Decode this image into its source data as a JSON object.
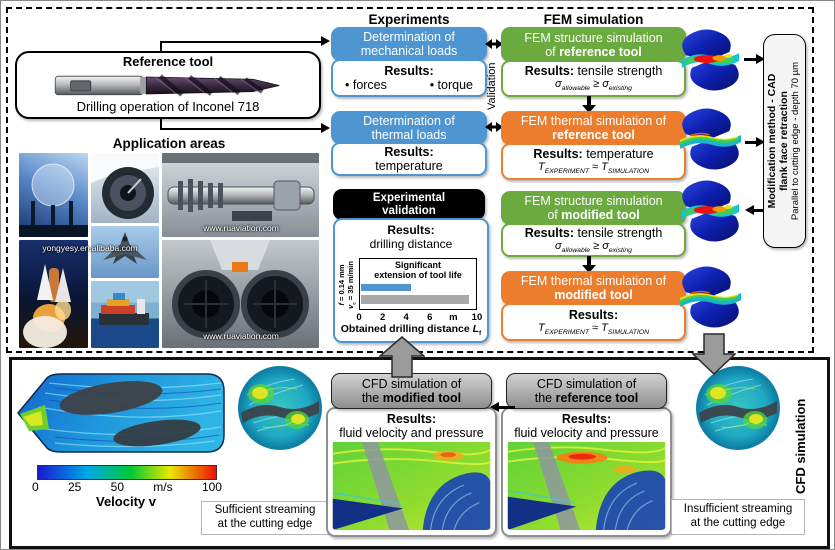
{
  "colors": {
    "experiment_blue": "#4d96d2",
    "fem_structure_green": "#6aaa3f",
    "fem_thermal_orange": "#ec7d2d",
    "validation_black": "#000000",
    "cfd_gray": "#9b9b9b"
  },
  "top": {
    "reference_tool": {
      "title": "Reference tool",
      "caption": "Drilling operation of Inconel 718"
    },
    "application_areas": {
      "title": "Application areas",
      "watermark_left": "yongyesy.en.alibaba.com",
      "watermark_top_right": "www.ruaviation.com",
      "watermark_bottom_right": "www.ruaviation.com"
    },
    "experiments_header": "Experiments",
    "fem_header": "FEM simulation",
    "validation_label": "Validation",
    "mechanical_box": {
      "line1": "Determination of",
      "line2": "mechanical loads"
    },
    "mechanical_results": {
      "label": "Results:",
      "item1": "• forces",
      "item2": "• torque"
    },
    "thermal_box": {
      "line1": "Determination of",
      "line2": "thermal loads"
    },
    "thermal_results": {
      "label": "Results:",
      "value": "temperature"
    },
    "fem_structure_reference": {
      "line1": "FEM structure simulation",
      "line2_pre": "of ",
      "line2_bold": "reference tool",
      "results_label": "Results:",
      "results_text": " tensile strength",
      "f_s1": "σ",
      "f_sub1": "allowable",
      "f_op": " ≥ ",
      "f_s2": "σ",
      "f_sub2": "existing"
    },
    "fem_thermal_reference": {
      "line1": "FEM thermal simulation of",
      "line2_bold": "reference tool",
      "results_label": "Results:",
      "results_text": " temperature",
      "f_s1": "T",
      "f_sub1": "EXPERIMENT",
      "f_op": " ≈ ",
      "f_s2": "T",
      "f_sub2": "SIMULATION"
    },
    "fem_structure_modified": {
      "line1": "FEM structure simulation",
      "line2_pre": "of ",
      "line2_bold": "modified tool",
      "results_label": "Results:",
      "results_text": " tensile strength",
      "f_s1": "σ",
      "f_sub1": "allowable",
      "f_op": " ≥ ",
      "f_s2": "σ",
      "f_sub2": "existing"
    },
    "fem_thermal_modified": {
      "line1": "FEM thermal simulation of",
      "line2_bold": "modified tool",
      "results_label": "Results:",
      "f_s1": "T",
      "f_sub1": "EXPERIMENT",
      "f_op": " ≈ ",
      "f_s2": "T",
      "f_sub2": "SIMULATION"
    },
    "experimental_validation": {
      "title_line1": "Experimental",
      "title_line2": "validation",
      "results_label": "Results:",
      "results_value": "drilling distance"
    },
    "modification_box": {
      "line1": "Modification method - CAD",
      "line2": "flank face retraction",
      "line3": "Parallel to cutting edge - depth 70 µm"
    }
  },
  "bottom": {
    "section_label": "CFD simulation",
    "colorbar": {
      "tick0": "0",
      "tick1": "25",
      "tick2": "50",
      "tick3": "m/s",
      "tick4": "100",
      "title": "Velocity v"
    },
    "cfd_modified": {
      "line1": "CFD simulation of",
      "line2_pre": "the ",
      "line2_bold": "modified tool",
      "results_label": "Results:",
      "results_value": "fluid velocity and pressure"
    },
    "cfd_reference": {
      "line1": "CFD simulation of",
      "line2_pre": "the ",
      "line2_bold": "reference tool",
      "results_label": "Results:",
      "results_value": "fluid velocity and pressure"
    },
    "caption_sufficient": {
      "line1": "Sufficient streaming",
      "line2": "at the cutting edge"
    },
    "caption_insufficient": {
      "line1": "Insufficient streaming",
      "line2": "at the cutting edge"
    }
  },
  "chart_data": {
    "type": "bar",
    "title": "Experimental validation",
    "annotation_line1": "Significant",
    "annotation_line2": "extension of tool life",
    "ylabel_line1_var": "f",
    "ylabel_line1_rest": " = 0.14 mm",
    "ylabel_line2_var": "v",
    "ylabel_line2_sub": "c",
    "ylabel_line2_rest": " = 35 m/min",
    "xlabel_pre": "Obtained drilling distance ",
    "xlabel_var": "L",
    "xlabel_sub": "f",
    "x_ticks": [
      "0",
      "2",
      "4",
      "6",
      "m",
      "10"
    ],
    "xlim": [
      0,
      10
    ],
    "unit": "m",
    "orientation": "horizontal",
    "grid": false,
    "bars": [
      {
        "name": "upper",
        "value": 4.3,
        "color": "#4d96d2"
      },
      {
        "name": "lower",
        "value": 9.3,
        "color": "#a8a8a8"
      }
    ]
  }
}
